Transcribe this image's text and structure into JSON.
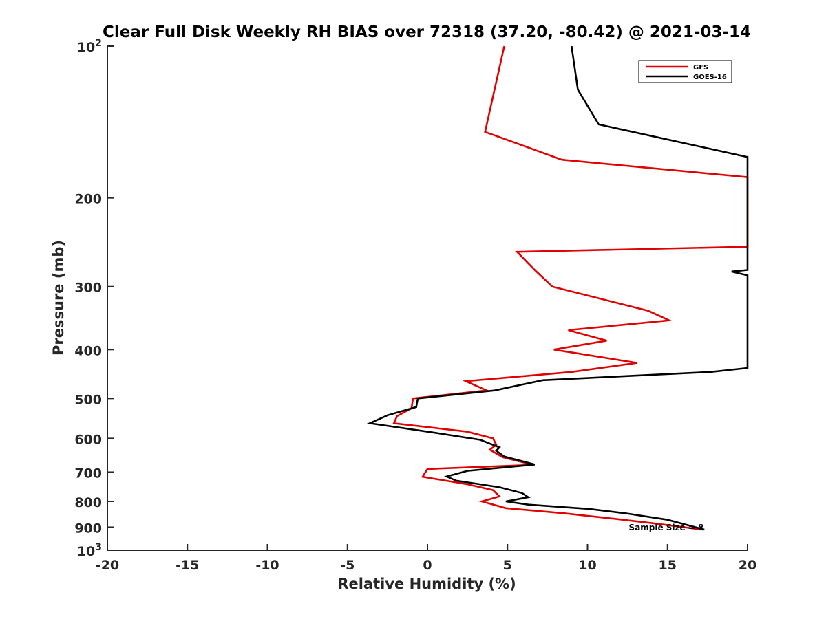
{
  "chart_data": {
    "type": "line",
    "title": "Clear Full Disk Weekly RH BIAS over 72318 (37.20, -80.42) @ 2021-03-14",
    "xlabel": "Relative Humidity (%)",
    "ylabel": "Pressure (mb)",
    "xlim": [
      -20,
      20
    ],
    "ylim": [
      100,
      1000
    ],
    "y_scale": "log",
    "y_reversed": true,
    "grid": false,
    "legend_position": "top-right",
    "xticks": [
      -20,
      -15,
      -10,
      -5,
      0,
      5,
      10,
      15,
      20
    ],
    "x_tick_labels": [
      "-20",
      "-15",
      "-10",
      "-5",
      "0",
      "5",
      "10",
      "15",
      "20"
    ],
    "yticks": [
      100,
      200,
      300,
      400,
      500,
      600,
      700,
      800,
      900,
      1000
    ],
    "y_tick_labels": [
      {
        "base": "10",
        "exp": "2"
      },
      {
        "base": "200",
        "exp": ""
      },
      {
        "base": "300",
        "exp": ""
      },
      {
        "base": "400",
        "exp": ""
      },
      {
        "base": "500",
        "exp": ""
      },
      {
        "base": "600",
        "exp": ""
      },
      {
        "base": "700",
        "exp": ""
      },
      {
        "base": "800",
        "exp": ""
      },
      {
        "base": "900",
        "exp": ""
      },
      {
        "base": "10",
        "exp": "3"
      }
    ],
    "series": [
      {
        "name": "GFS",
        "color": "#e00000",
        "points": [
          [
            4.8,
            100
          ],
          [
            3.6,
            148
          ],
          [
            8.4,
            168
          ],
          [
            20,
            182
          ],
          [
            20,
            250
          ],
          [
            5.6,
            256
          ],
          [
            6.7,
            278
          ],
          [
            7.8,
            300
          ],
          [
            13.8,
            335
          ],
          [
            15.1,
            350
          ],
          [
            8.8,
            366
          ],
          [
            11.2,
            384
          ],
          [
            7.9,
            400
          ],
          [
            13.1,
            425
          ],
          [
            9.0,
            443
          ],
          [
            2.4,
            462
          ],
          [
            3.7,
            482
          ],
          [
            -0.9,
            500
          ],
          [
            -1.0,
            523
          ],
          [
            -1.9,
            542
          ],
          [
            -2.1,
            560
          ],
          [
            2.5,
            582
          ],
          [
            4.1,
            600
          ],
          [
            4.3,
            618
          ],
          [
            3.9,
            632
          ],
          [
            4.7,
            654
          ],
          [
            6.6,
            677
          ],
          [
            0,
            690
          ],
          [
            -0.3,
            715
          ],
          [
            2.5,
            740
          ],
          [
            4.1,
            760
          ],
          [
            4.5,
            782
          ],
          [
            3.4,
            800
          ],
          [
            4.9,
            825
          ],
          [
            8.6,
            845
          ],
          [
            11.5,
            865
          ],
          [
            14.2,
            885
          ],
          [
            17.2,
            910
          ]
        ]
      },
      {
        "name": "GOES-16",
        "color": "#000000",
        "points": [
          [
            9.0,
            100
          ],
          [
            9.4,
            122
          ],
          [
            10.7,
            143
          ],
          [
            20,
            166
          ],
          [
            20,
            278
          ],
          [
            19.0,
            280
          ],
          [
            20,
            285
          ],
          [
            20,
            435
          ],
          [
            17.7,
            443
          ],
          [
            7.2,
            460
          ],
          [
            4.2,
            482
          ],
          [
            -0.6,
            500
          ],
          [
            -0.7,
            520
          ],
          [
            -2.5,
            540
          ],
          [
            -3.6,
            560
          ],
          [
            0.5,
            585
          ],
          [
            3.3,
            604
          ],
          [
            4.5,
            625
          ],
          [
            4.3,
            635
          ],
          [
            4.8,
            652
          ],
          [
            6.7,
            676
          ],
          [
            2.5,
            696
          ],
          [
            1.2,
            714
          ],
          [
            1.8,
            728
          ],
          [
            4.5,
            750
          ],
          [
            5.9,
            770
          ],
          [
            6.3,
            785
          ],
          [
            4.9,
            800
          ],
          [
            6.3,
            812
          ],
          [
            10.1,
            828
          ],
          [
            12.4,
            845
          ],
          [
            15.0,
            870
          ],
          [
            17.3,
            910
          ]
        ]
      }
    ],
    "annotations": [
      {
        "text": "Sample Size = 8"
      }
    ]
  }
}
